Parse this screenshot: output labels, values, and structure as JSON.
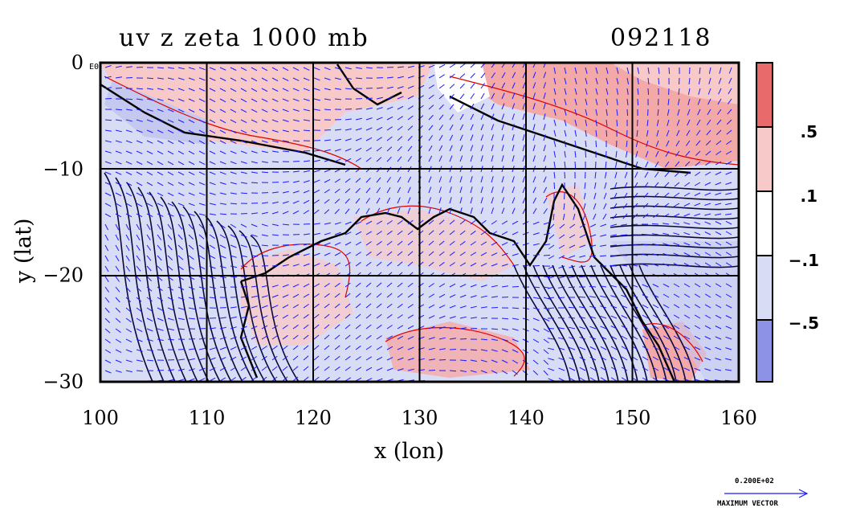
{
  "header": {
    "title": "uv z zeta 1000 mb",
    "date_code": "092118"
  },
  "chart_data": {
    "type": "heatmap",
    "title": "uv z zeta 1000 mb",
    "xlabel": "x (lon)",
    "ylabel": "y (lat)",
    "xlim": [
      100,
      160
    ],
    "ylim": [
      -30,
      0
    ],
    "x_ticks": [
      "100",
      "110",
      "120",
      "130",
      "140",
      "150",
      "160"
    ],
    "y_ticks": [
      "0",
      "−10",
      "−20",
      "−30"
    ],
    "y_tick_values": [
      0,
      -10,
      -20,
      -30
    ],
    "x_tick_values": [
      100,
      110,
      120,
      130,
      140,
      150,
      160
    ],
    "grid": true,
    "colorbar": {
      "levels": [
        -0.5,
        -0.1,
        0.1,
        0.5
      ],
      "labels": [
        ".5",
        ".1",
        "−.1",
        "−.5"
      ],
      "colors": [
        "#e86a6a",
        "#f8c9c9",
        "#ffffff",
        "#d9dcf5",
        "#8d92e6"
      ]
    },
    "vector_legend": {
      "value": "0.200E+02",
      "label": "MAXIMUM VECTOR"
    },
    "corner_label": "E0"
  },
  "colors": {
    "positive_strong": "#e86a6a",
    "positive_weak": "#f8c9c9",
    "negative_weak": "#d9dcf5",
    "negative_strong": "#8d92e6",
    "vector": "#1a1aff",
    "contour": "#000033",
    "zeta_contour": "#e00000"
  }
}
